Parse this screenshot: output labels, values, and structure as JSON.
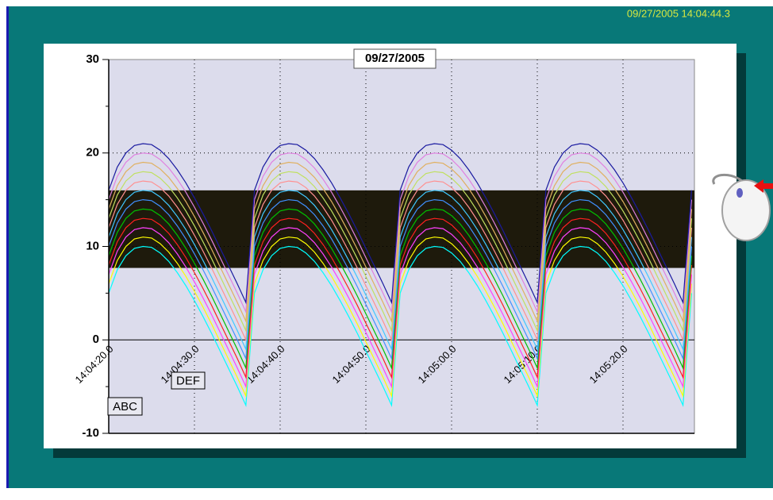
{
  "timestamp": "09/27/2005 14:04:44.3",
  "chart_data": {
    "type": "line",
    "title": "09/27/2005",
    "categories": [
      "14:04:20.0",
      null,
      null,
      null,
      null,
      null,
      null,
      null,
      null,
      null,
      "14:04:30.0",
      null,
      null,
      null,
      null,
      null,
      null,
      null,
      null,
      null,
      "14:04:40.0",
      null,
      null,
      null,
      null,
      null,
      null,
      null,
      null,
      null,
      "14:04:50.0",
      null,
      null,
      null,
      null,
      null,
      null,
      null,
      null,
      null,
      "14:05:00.0",
      null,
      null,
      null,
      null,
      null,
      null,
      null,
      null,
      null,
      "14:05:10.0",
      null,
      null,
      null,
      null,
      null,
      null,
      null,
      null,
      null,
      "14:05:20.0",
      null,
      null,
      null,
      null,
      null,
      null,
      null,
      null
    ],
    "ylim": [
      -10,
      30
    ],
    "yticks": [
      -10,
      0,
      10,
      20,
      30
    ],
    "yminor_ticks": [
      -5,
      5,
      15,
      25
    ],
    "grid": true,
    "plot_color": "#dcdcec",
    "band": {
      "ylim": [
        7.7,
        16
      ],
      "color": "#1e1a0c"
    },
    "annotations": [
      "ABC",
      "DEF"
    ],
    "series": [
      {
        "color": "#00ffff",
        "values": [
          5,
          7.5,
          9,
          9.8,
          10,
          9.9,
          9.3,
          8.4,
          7.2,
          5.8,
          4.2,
          2.5,
          0.7,
          -1.2,
          -3.1,
          -5,
          -7,
          5,
          7.5,
          9,
          9.8,
          10,
          9.9,
          9.3,
          8.4,
          7.2,
          5.8,
          4.2,
          2.5,
          0.7,
          -1.2,
          -3.1,
          -5,
          -7,
          5,
          7.5,
          9,
          9.8,
          10,
          9.9,
          9.3,
          8.4,
          7.2,
          5.8,
          4.2,
          2.5,
          0.7,
          -1.2,
          -3.1,
          -5,
          -7,
          5,
          7.5,
          9,
          9.8,
          10,
          9.9,
          9.3,
          8.4,
          7.2,
          5.8,
          4.2,
          2.5,
          0.7,
          -1.2,
          -3.1,
          -5,
          -7,
          5
        ]
      },
      {
        "color": "#ffff00",
        "values": [
          6,
          8.5,
          10,
          10.8,
          11,
          10.9,
          10.3,
          9.4,
          8.2,
          6.8,
          5.2,
          3.5,
          1.7,
          -0.2,
          -2.1,
          -4,
          -6,
          6,
          8.5,
          10,
          10.8,
          11,
          10.9,
          10.3,
          9.4,
          8.2,
          6.8,
          5.2,
          3.5,
          1.7,
          -0.2,
          -2.1,
          -4,
          -6,
          6,
          8.5,
          10,
          10.8,
          11,
          10.9,
          10.3,
          9.4,
          8.2,
          6.8,
          5.2,
          3.5,
          1.7,
          -0.2,
          -2.1,
          -4,
          -6,
          6,
          8.5,
          10,
          10.8,
          11,
          10.9,
          10.3,
          9.4,
          8.2,
          6.8,
          5.2,
          3.5,
          1.7,
          -0.2,
          -2.1,
          -4,
          -6,
          6
        ]
      },
      {
        "color": "#ff40ff",
        "values": [
          7,
          9.5,
          11,
          11.8,
          12,
          11.9,
          11.3,
          10.4,
          9.2,
          7.8,
          6.2,
          4.5,
          2.7,
          0.8,
          -1.1,
          -3,
          -5,
          7,
          9.5,
          11,
          11.8,
          12,
          11.9,
          11.3,
          10.4,
          9.2,
          7.8,
          6.2,
          4.5,
          2.7,
          0.8,
          -1.1,
          -3,
          -5,
          7,
          9.5,
          11,
          11.8,
          12,
          11.9,
          11.3,
          10.4,
          9.2,
          7.8,
          6.2,
          4.5,
          2.7,
          0.8,
          -1.1,
          -3,
          -5,
          7,
          9.5,
          11,
          11.8,
          12,
          11.9,
          11.3,
          10.4,
          9.2,
          7.8,
          6.2,
          4.5,
          2.7,
          0.8,
          -1.1,
          -3,
          -5,
          7
        ]
      },
      {
        "color": "#ff2020",
        "values": [
          8,
          10.5,
          12,
          12.8,
          13,
          12.9,
          12.3,
          11.4,
          10.2,
          8.8,
          7.2,
          5.5,
          3.7,
          1.8,
          -0.1,
          -2,
          -4,
          8,
          10.5,
          12,
          12.8,
          13,
          12.9,
          12.3,
          11.4,
          10.2,
          8.8,
          7.2,
          5.5,
          3.7,
          1.8,
          -0.1,
          -2,
          -4,
          8,
          10.5,
          12,
          12.8,
          13,
          12.9,
          12.3,
          11.4,
          10.2,
          8.8,
          7.2,
          5.5,
          3.7,
          1.8,
          -0.1,
          -2,
          -4,
          8,
          10.5,
          12,
          12.8,
          13,
          12.9,
          12.3,
          11.4,
          10.2,
          8.8,
          7.2,
          5.5,
          3.7,
          1.8,
          -0.1,
          -2,
          -4,
          8
        ]
      },
      {
        "color": "#00c000",
        "values": [
          9,
          11.5,
          13,
          13.8,
          14,
          13.9,
          13.3,
          12.4,
          11.2,
          9.8,
          8.2,
          6.5,
          4.7,
          2.8,
          0.9,
          -1,
          -3,
          9,
          11.5,
          13,
          13.8,
          14,
          13.9,
          13.3,
          12.4,
          11.2,
          9.8,
          8.2,
          6.5,
          4.7,
          2.8,
          0.9,
          -1,
          -3,
          9,
          11.5,
          13,
          13.8,
          14,
          13.9,
          13.3,
          12.4,
          11.2,
          9.8,
          8.2,
          6.5,
          4.7,
          2.8,
          0.9,
          -1,
          -3,
          9,
          11.5,
          13,
          13.8,
          14,
          13.9,
          13.3,
          12.4,
          11.2,
          9.8,
          8.2,
          6.5,
          4.7,
          2.8,
          0.9,
          -1,
          -3,
          9
        ]
      },
      {
        "color": "#4090ff",
        "values": [
          10,
          12.5,
          14,
          14.8,
          15,
          14.9,
          14.3,
          13.4,
          12.2,
          10.8,
          9.2,
          7.5,
          5.7,
          3.8,
          1.9,
          0,
          -2,
          10,
          12.5,
          14,
          14.8,
          15,
          14.9,
          14.3,
          13.4,
          12.2,
          10.8,
          9.2,
          7.5,
          5.7,
          3.8,
          1.9,
          0,
          -2,
          10,
          12.5,
          14,
          14.8,
          15,
          14.9,
          14.3,
          13.4,
          12.2,
          10.8,
          9.2,
          7.5,
          5.7,
          3.8,
          1.9,
          0,
          -2,
          10,
          12.5,
          14,
          14.8,
          15,
          14.9,
          14.3,
          13.4,
          12.2,
          10.8,
          9.2,
          7.5,
          5.7,
          3.8,
          1.9,
          0,
          -2,
          10
        ]
      },
      {
        "color": "#40c8ff",
        "values": [
          11,
          13.5,
          15,
          15.8,
          16,
          15.9,
          15.3,
          14.4,
          13.2,
          11.8,
          10.2,
          8.5,
          6.7,
          4.8,
          2.9,
          1,
          -1,
          11,
          13.5,
          15,
          15.8,
          16,
          15.9,
          15.3,
          14.4,
          13.2,
          11.8,
          10.2,
          8.5,
          6.7,
          4.8,
          2.9,
          1,
          -1,
          11,
          13.5,
          15,
          15.8,
          16,
          15.9,
          15.3,
          14.4,
          13.2,
          11.8,
          10.2,
          8.5,
          6.7,
          4.8,
          2.9,
          1,
          -1,
          11,
          13.5,
          15,
          15.8,
          16,
          15.9,
          15.3,
          14.4,
          13.2,
          11.8,
          10.2,
          8.5,
          6.7,
          4.8,
          2.9,
          1,
          -1,
          11
        ]
      },
      {
        "color": "#ff9090",
        "values": [
          12,
          14.5,
          16,
          16.8,
          17,
          16.9,
          16.3,
          15.4,
          14.2,
          12.8,
          11.2,
          9.5,
          7.7,
          5.8,
          3.9,
          2,
          0,
          12,
          14.5,
          16,
          16.8,
          17,
          16.9,
          16.3,
          15.4,
          14.2,
          12.8,
          11.2,
          9.5,
          7.7,
          5.8,
          3.9,
          2,
          0,
          12,
          14.5,
          16,
          16.8,
          17,
          16.9,
          16.3,
          15.4,
          14.2,
          12.8,
          11.2,
          9.5,
          7.7,
          5.8,
          3.9,
          2,
          0,
          12,
          14.5,
          16,
          16.8,
          17,
          16.9,
          16.3,
          15.4,
          14.2,
          12.8,
          11.2,
          9.5,
          7.7,
          5.8,
          3.9,
          2,
          0,
          12
        ]
      },
      {
        "color": "#c0e060",
        "values": [
          13,
          15.5,
          17,
          17.8,
          18,
          17.9,
          17.3,
          16.4,
          15.2,
          13.8,
          12.2,
          10.5,
          8.7,
          6.8,
          4.9,
          3,
          1,
          13,
          15.5,
          17,
          17.8,
          18,
          17.9,
          17.3,
          16.4,
          15.2,
          13.8,
          12.2,
          10.5,
          8.7,
          6.8,
          4.9,
          3,
          1,
          13,
          15.5,
          17,
          17.8,
          18,
          17.9,
          17.3,
          16.4,
          15.2,
          13.8,
          12.2,
          10.5,
          8.7,
          6.8,
          4.9,
          3,
          1,
          13,
          15.5,
          17,
          17.8,
          18,
          17.9,
          17.3,
          16.4,
          15.2,
          13.8,
          12.2,
          10.5,
          8.7,
          6.8,
          4.9,
          3,
          1,
          13
        ]
      },
      {
        "color": "#e0b060",
        "values": [
          14,
          16.5,
          18,
          18.8,
          19,
          18.9,
          18.3,
          17.4,
          16.2,
          14.8,
          13.2,
          11.5,
          9.7,
          7.8,
          5.9,
          4,
          2,
          14,
          16.5,
          18,
          18.8,
          19,
          18.9,
          18.3,
          17.4,
          16.2,
          14.8,
          13.2,
          11.5,
          9.7,
          7.8,
          5.9,
          4,
          2,
          14,
          16.5,
          18,
          18.8,
          19,
          18.9,
          18.3,
          17.4,
          16.2,
          14.8,
          13.2,
          11.5,
          9.7,
          7.8,
          5.9,
          4,
          2,
          14,
          16.5,
          18,
          18.8,
          19,
          18.9,
          18.3,
          17.4,
          16.2,
          14.8,
          13.2,
          11.5,
          9.7,
          7.8,
          5.9,
          4,
          2,
          14
        ]
      },
      {
        "color": "#e080e0",
        "values": [
          15,
          17.5,
          19,
          19.8,
          20,
          19.9,
          19.3,
          18.4,
          17.2,
          15.8,
          14.2,
          12.5,
          10.7,
          8.8,
          6.9,
          5,
          3,
          15,
          17.5,
          19,
          19.8,
          20,
          19.9,
          19.3,
          18.4,
          17.2,
          15.8,
          14.2,
          12.5,
          10.7,
          8.8,
          6.9,
          5,
          3,
          15,
          17.5,
          19,
          19.8,
          20,
          19.9,
          19.3,
          18.4,
          17.2,
          15.8,
          14.2,
          12.5,
          10.7,
          8.8,
          6.9,
          5,
          3,
          15,
          17.5,
          19,
          19.8,
          20,
          19.9,
          19.3,
          18.4,
          17.2,
          15.8,
          14.2,
          12.5,
          10.7,
          8.8,
          6.9,
          5,
          3,
          15
        ]
      },
      {
        "color": "#1a1aa0",
        "values": [
          16,
          18.5,
          20,
          20.8,
          21,
          20.9,
          20.3,
          19.4,
          18.2,
          16.8,
          15.2,
          13.5,
          11.7,
          9.8,
          7.9,
          6,
          4,
          16,
          18.5,
          20,
          20.8,
          21,
          20.9,
          20.3,
          19.4,
          18.2,
          16.8,
          15.2,
          13.5,
          11.7,
          9.8,
          7.9,
          6,
          4,
          16,
          18.5,
          20,
          20.8,
          21,
          20.9,
          20.3,
          19.4,
          18.2,
          16.8,
          15.2,
          13.5,
          11.7,
          9.8,
          7.9,
          6,
          4,
          16,
          18.5,
          20,
          20.8,
          21,
          20.9,
          20.3,
          19.4,
          18.2,
          16.8,
          15.2,
          13.5,
          11.7,
          9.8,
          7.9,
          6,
          4,
          16
        ]
      }
    ]
  }
}
